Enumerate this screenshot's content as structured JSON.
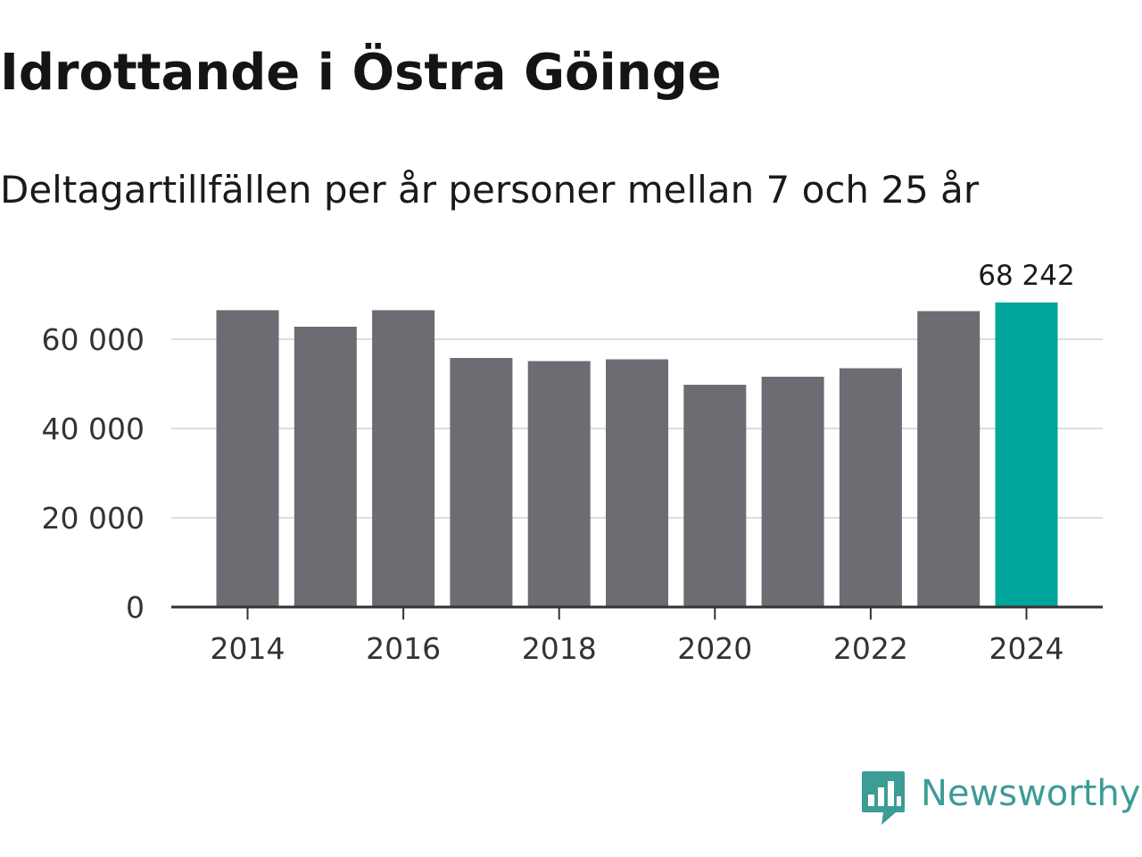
{
  "title": "Idrottande i Östra Göinge",
  "subtitle": "Deltagartillfällen per år personer mellan 7 och 25 år",
  "brand": {
    "name": "Newsworthy",
    "icon": "newsworthy-logo-icon",
    "color": "#3c9c96"
  },
  "colors": {
    "bar": "#6d6c72",
    "highlight": "#00a59b",
    "grid": "#dddddd",
    "axis": "#333333"
  },
  "chart_data": {
    "type": "bar",
    "title": "Idrottande i Östra Göinge",
    "subtitle": "Deltagartillfällen per år personer mellan 7 och 25 år",
    "xlabel": "",
    "ylabel": "",
    "categories": [
      "2014",
      "2015",
      "2016",
      "2017",
      "2018",
      "2019",
      "2020",
      "2021",
      "2022",
      "2023",
      "2024"
    ],
    "values": [
      66500,
      62800,
      66500,
      55800,
      55100,
      55500,
      49800,
      51600,
      53500,
      66300,
      68242
    ],
    "highlight_index": 10,
    "value_labels": [
      {
        "index": 10,
        "text": "68 242"
      }
    ],
    "x_tick_labels": [
      "2014",
      "2016",
      "2018",
      "2020",
      "2022",
      "2024"
    ],
    "y_ticks": [
      0,
      20000,
      40000,
      60000
    ],
    "y_tick_labels": [
      "0",
      "20 000",
      "40 000",
      "60 000"
    ],
    "ylim": [
      0,
      70000
    ],
    "grid": true,
    "legend": "none"
  }
}
